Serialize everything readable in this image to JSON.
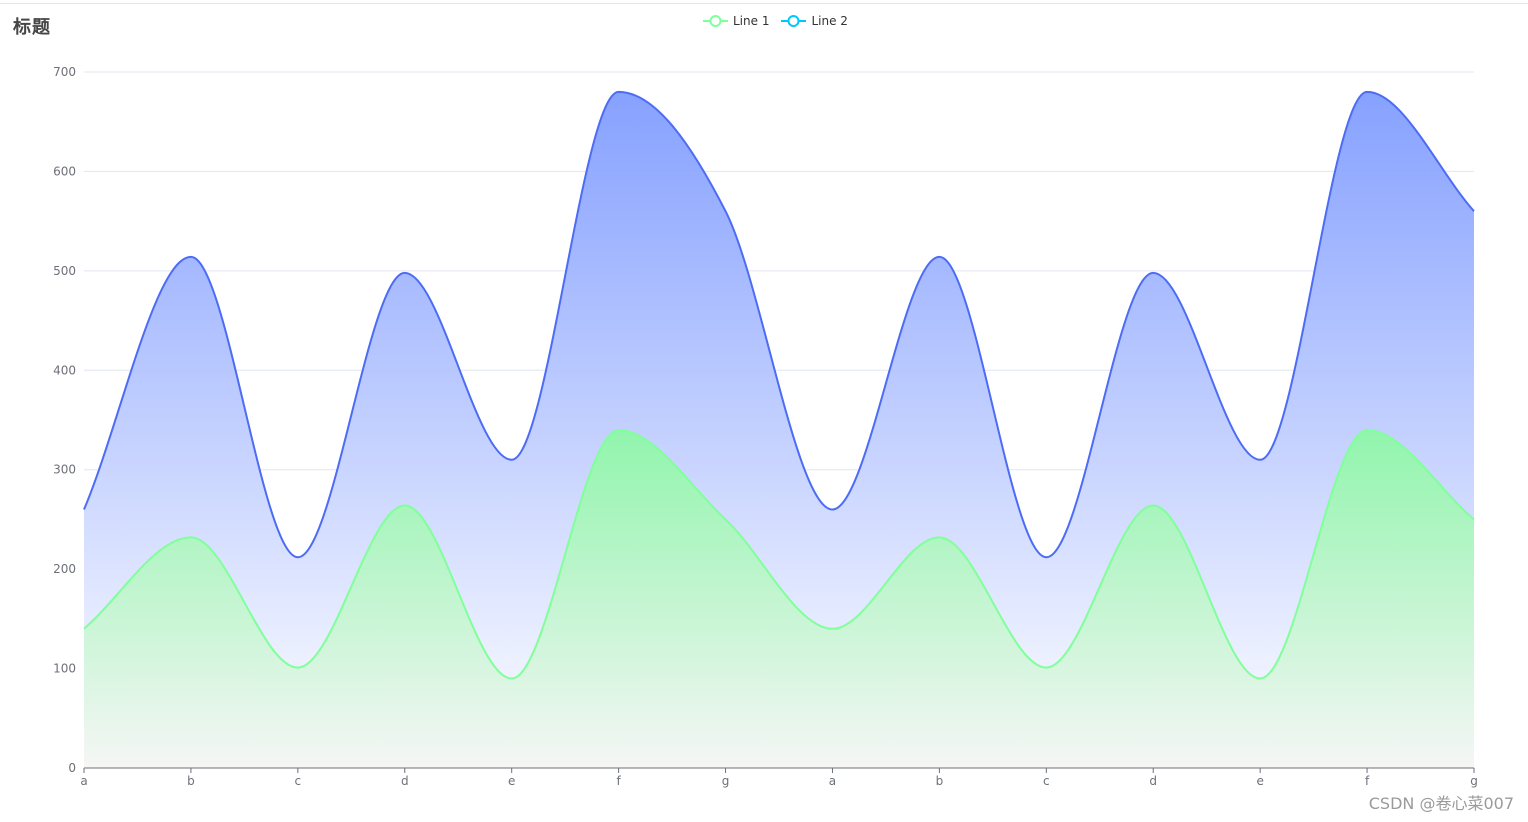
{
  "chart_data": {
    "type": "area",
    "title": "标题",
    "categories": [
      "a",
      "b",
      "c",
      "d",
      "e",
      "f",
      "g",
      "a",
      "b",
      "c",
      "d",
      "e",
      "f",
      "g"
    ],
    "ylim": [
      0,
      700
    ],
    "yticks": [
      0,
      100,
      200,
      300,
      400,
      500,
      600,
      700
    ],
    "grid": true,
    "legend_position": "top-center",
    "smooth": true,
    "series": [
      {
        "name": "Line 1",
        "color": "#80ff9a",
        "gradient_top": "#8ef7a8",
        "gradient_bottom": "#f5f5f5",
        "values": [
          140,
          232,
          101,
          264,
          90,
          340,
          250,
          140,
          232,
          101,
          264,
          90,
          340,
          250
        ]
      },
      {
        "name": "Line 2",
        "color": "#4d6cf5",
        "gradient_top": "#809cff",
        "gradient_bottom": "#ffffff",
        "values": [
          260,
          514,
          212,
          498,
          310,
          680,
          560,
          260,
          514,
          212,
          498,
          310,
          680,
          560
        ]
      }
    ]
  },
  "legend": {
    "line1_icon": "circle-line-icon",
    "line2_icon": "circle-line-icon",
    "line2_icon_color": "#00c8ff"
  },
  "watermark": "CSDN @卷心菜007"
}
